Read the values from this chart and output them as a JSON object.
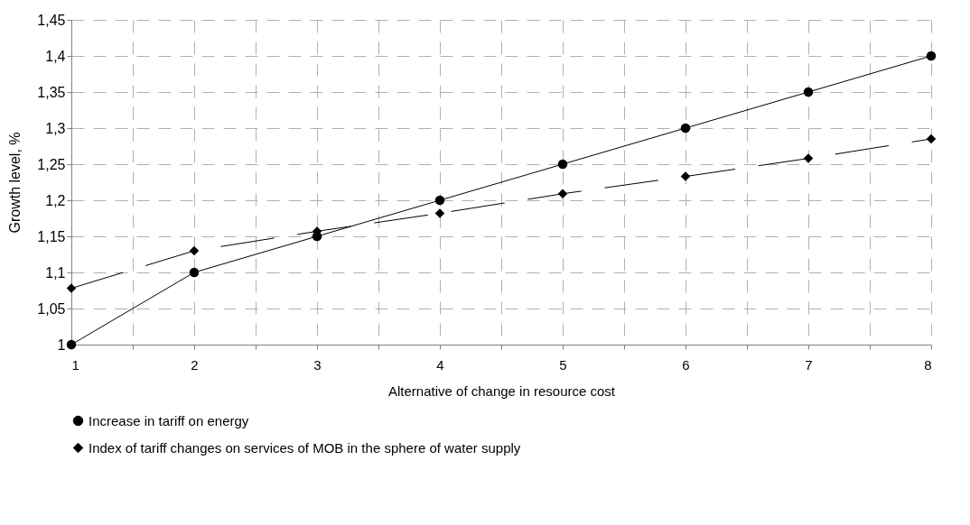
{
  "chart_data": {
    "type": "line",
    "xlabel": "Alternative of change in resource cost",
    "ylabel": "Growth level, %",
    "x": [
      1,
      2,
      3,
      4,
      5,
      6,
      7,
      8
    ],
    "series": [
      {
        "name": "Increase in tariff on energy",
        "color": "#000000",
        "marker": "circle",
        "line_style": "solid",
        "values": [
          1,
          1.1,
          1.15,
          1.2,
          1.25,
          1.3,
          1.35,
          1.4
        ]
      },
      {
        "name": "Index of tariff changes on services of MOB in the sphere of water supply",
        "color": "#000000",
        "marker": "diamond",
        "line_style": "dashed",
        "values": [
          1.078,
          1.13,
          1.157,
          1.182,
          1.209,
          1.233,
          1.258,
          1.285
        ]
      }
    ],
    "xlim": [
      1,
      8
    ],
    "xticks": [
      1,
      {
        "value": 1.5,
        "label": null
      },
      2,
      {
        "value": 2.5,
        "label": null
      },
      3,
      {
        "value": 3.5,
        "label": null
      },
      4,
      {
        "value": 4.5,
        "label": null
      },
      5,
      {
        "value": 5.5,
        "label": null
      },
      6,
      {
        "value": 6.5,
        "label": null
      },
      7,
      {
        "value": 7.5,
        "label": null
      },
      8
    ],
    "ylim": [
      1,
      1.45
    ],
    "yticks": [
      1,
      {
        "value": 1.05,
        "label": "1,05"
      },
      {
        "value": 1.1,
        "label": "1,1"
      },
      {
        "value": 1.15,
        "label": "1,15"
      },
      {
        "value": 1.2,
        "label": "1,2"
      },
      {
        "value": 1.25,
        "label": "1,25"
      },
      {
        "value": 1.3,
        "label": "1,3"
      },
      {
        "value": 1.35,
        "label": "1,35"
      },
      {
        "value": 1.4,
        "label": "1,4"
      },
      {
        "value": 1.45,
        "label": "1,45"
      }
    ],
    "grid": true,
    "legend": "bottom left"
  }
}
